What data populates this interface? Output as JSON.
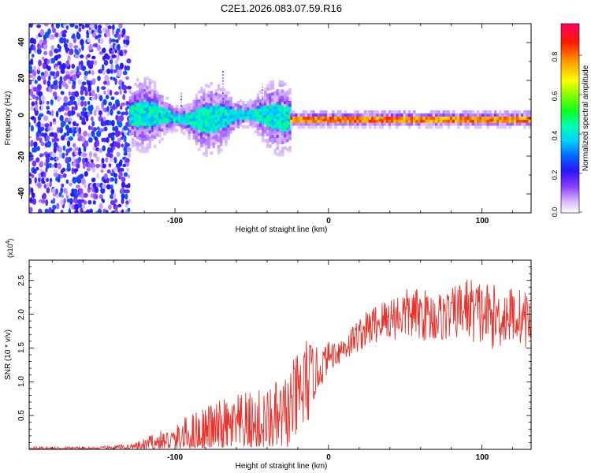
{
  "title": "C2E1.2026.083.07.59.R16",
  "colors": {
    "snr_line": "#e8322c",
    "spectrogram_ramp": [
      "#ffffff",
      "#d9b8ff",
      "#a060ff",
      "#6010ff",
      "#2020ff",
      "#00a0ff",
      "#00ffff",
      "#00ff60",
      "#60ff00",
      "#ffff00",
      "#ffa000",
      "#ff2000",
      "#ff0060"
    ],
    "axis": "#000000"
  },
  "chart_data": [
    {
      "type": "heatmap",
      "name": "spectrogram",
      "xlabel": "Height of straight line (km)",
      "ylabel": "Frequency (Hz)",
      "xlim": [
        -195,
        132
      ],
      "ylim": [
        -50,
        50
      ],
      "xticks": [
        -100,
        0,
        100
      ],
      "yticks": [
        -40,
        -20,
        0,
        20,
        40
      ],
      "description_regions": [
        {
          "x_from": -195,
          "x_to": -130,
          "kind": "broadband noise",
          "amplitude_range": [
            0.05,
            0.3
          ]
        },
        {
          "x_from": -130,
          "x_to": -25,
          "kind": "spread band",
          "center_hz": 0,
          "halfwidth_hz": 6,
          "amplitude_range": [
            0.15,
            0.5
          ]
        },
        {
          "x_from": -25,
          "x_to": 132,
          "kind": "narrow line",
          "center_hz": -1,
          "halfwidth_hz": 2,
          "amplitude_range": [
            0.5,
            0.9
          ]
        }
      ],
      "colorbar": {
        "label": "Normalized spectral amplitude",
        "range": [
          0.0,
          0.95
        ],
        "ticks": [
          "0.0",
          "0.2",
          "0.4",
          "0.6",
          "0.8"
        ]
      }
    },
    {
      "type": "line",
      "name": "snr",
      "xlabel": "Height of straight line (km)",
      "ylabel": "SNR (10 * v/v)",
      "y_multiplier_label": "(x10",
      "y_multiplier_exp": "4",
      "xlim": [
        -195,
        132
      ],
      "ylim": [
        0,
        2.8
      ],
      "xticks": [
        -100,
        0,
        100
      ],
      "yticks": [
        0.5,
        1.0,
        1.5,
        2.0,
        2.5
      ],
      "ytick_labels": [
        "0.5",
        "1.0",
        "1.5",
        "2.0",
        "2.5"
      ],
      "series": [
        {
          "name": "SNR",
          "x": [
            -195,
            -150,
            -125,
            -115,
            -100,
            -90,
            -80,
            -70,
            -60,
            -50,
            -40,
            -30,
            -20,
            -15,
            -10,
            -5,
            0,
            10,
            20,
            30,
            40,
            50,
            60,
            70,
            80,
            90,
            100,
            110,
            120,
            132
          ],
          "y": [
            0.02,
            0.02,
            0.05,
            0.12,
            0.18,
            0.28,
            0.35,
            0.38,
            0.42,
            0.45,
            0.48,
            0.55,
            0.75,
            0.95,
            1.1,
            1.2,
            1.38,
            1.5,
            1.7,
            1.85,
            1.95,
            2.0,
            2.0,
            1.95,
            2.0,
            2.1,
            2.0,
            1.95,
            2.0,
            1.9
          ],
          "spread": [
            0.01,
            0.01,
            0.04,
            0.08,
            0.14,
            0.22,
            0.3,
            0.34,
            0.36,
            0.4,
            0.45,
            0.6,
            0.8,
            0.9,
            0.5,
            0.35,
            0.25,
            0.25,
            0.3,
            0.35,
            0.4,
            0.45,
            0.45,
            0.45,
            0.45,
            0.55,
            0.6,
            0.55,
            0.5,
            0.5
          ]
        }
      ]
    }
  ],
  "ticks_text": {
    "top_x": [
      "-100",
      "0",
      "100"
    ],
    "top_y": [
      "40",
      "20",
      "0",
      "-20",
      "-40"
    ],
    "bot_x": [
      "-100",
      "0",
      "100"
    ]
  }
}
